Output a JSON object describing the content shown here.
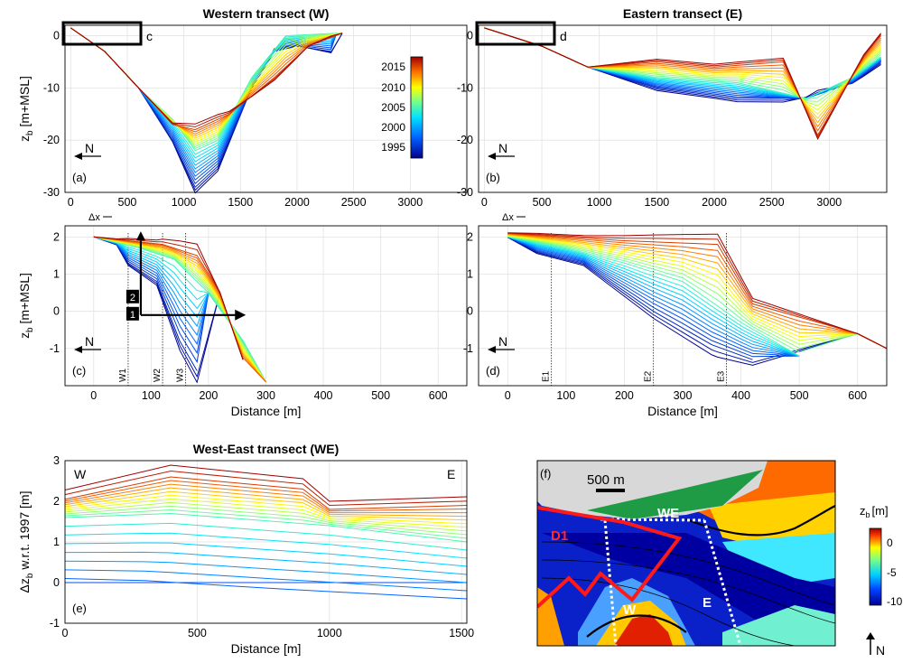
{
  "colormap_years": {
    "ticks": [
      "2015",
      "2010",
      "2005",
      "2000",
      "1995"
    ],
    "range": [
      1993,
      2017
    ]
  },
  "map_colorbar": {
    "title_main": "z",
    "title_sub": "b",
    "title_unit": "[m]",
    "ticks": [
      "0",
      "-5",
      "-10"
    ]
  },
  "chart_data": [
    {
      "id": "a",
      "type": "line",
      "title": "Western transect (W)",
      "panel_label": "(a)",
      "ylabel_main": "z",
      "ylabel_sub": "b",
      "ylabel_rest": " [m+MSL]",
      "xlim": [
        -50,
        3500
      ],
      "ylim": [
        -30,
        2
      ],
      "xticks": [
        0,
        500,
        1000,
        1500,
        2000,
        2500,
        3000
      ],
      "yticks": [
        0,
        -10,
        -20,
        -30
      ],
      "inset_label": "c",
      "direction": "N",
      "series_by_year": {
        "1995": [
          [
            0,
            1.5
          ],
          [
            300,
            -3
          ],
          [
            600,
            -10
          ],
          [
            900,
            -20
          ],
          [
            1100,
            -29
          ],
          [
            1300,
            -25
          ],
          [
            1600,
            -10
          ],
          [
            1800,
            -3
          ],
          [
            2000,
            -2
          ],
          [
            2300,
            -3
          ]
        ],
        "2005": [
          [
            0,
            1.5
          ],
          [
            300,
            -3
          ],
          [
            600,
            -10
          ],
          [
            900,
            -16
          ],
          [
            1100,
            -22
          ],
          [
            1300,
            -20
          ],
          [
            1600,
            -8
          ],
          [
            1900,
            0
          ],
          [
            2350,
            0.5
          ]
        ],
        "2015": [
          [
            0,
            1.5
          ],
          [
            300,
            -3
          ],
          [
            600,
            -10
          ],
          [
            900,
            -17
          ],
          [
            1100,
            -18
          ],
          [
            1400,
            -15
          ],
          [
            1800,
            -8
          ],
          [
            2100,
            -2
          ],
          [
            2400,
            0.5
          ]
        ]
      }
    },
    {
      "id": "b",
      "type": "line",
      "title": "Eastern transect (E)",
      "panel_label": "(b)",
      "xlim": [
        -50,
        3500
      ],
      "ylim": [
        -30,
        2
      ],
      "xticks": [
        0,
        500,
        1000,
        1500,
        2000,
        2500,
        3000
      ],
      "yticks": [
        0,
        -10,
        -20,
        -30
      ],
      "inset_label": "d",
      "direction": "N",
      "series_by_year": {
        "1995": [
          [
            0,
            1.5
          ],
          [
            500,
            -2
          ],
          [
            900,
            -6
          ],
          [
            1500,
            -10
          ],
          [
            2200,
            -12
          ],
          [
            2800,
            -12
          ],
          [
            3200,
            -9
          ],
          [
            3450,
            -5
          ]
        ],
        "2005": [
          [
            0,
            1.5
          ],
          [
            500,
            -2
          ],
          [
            900,
            -6
          ],
          [
            1500,
            -8
          ],
          [
            2200,
            -9
          ],
          [
            2800,
            -12
          ],
          [
            3200,
            -8
          ],
          [
            3450,
            -4
          ]
        ],
        "2015": [
          [
            0,
            1.5
          ],
          [
            500,
            -2
          ],
          [
            900,
            -6
          ],
          [
            1500,
            -5
          ],
          [
            2000,
            -6
          ],
          [
            2600,
            -5
          ],
          [
            2900,
            -19
          ],
          [
            3300,
            -4
          ],
          [
            3450,
            0
          ]
        ]
      }
    },
    {
      "id": "c",
      "type": "line",
      "panel_label": "(c)",
      "ylabel_main": "z",
      "ylabel_sub": "b",
      "ylabel_rest": " [m+MSL]",
      "xlabel": "Distance [m]",
      "xlim": [
        -50,
        650
      ],
      "ylim": [
        -2,
        2.3
      ],
      "xticks": [
        0,
        100,
        200,
        300,
        400,
        500,
        600
      ],
      "yticks": [
        2,
        1,
        0,
        -1
      ],
      "markers": [
        {
          "x": 60,
          "label": "W1"
        },
        {
          "x": 120,
          "label": "W2"
        },
        {
          "x": 160,
          "label": "W3"
        }
      ],
      "arrows": [
        {
          "label": "1",
          "direction": "cross-shore"
        },
        {
          "label": "2",
          "direction": "vertical"
        }
      ],
      "dx_label": "Δx",
      "direction": "N",
      "series_by_year": {
        "1995": [
          [
            0,
            2
          ],
          [
            40,
            1.8
          ],
          [
            60,
            1.3
          ],
          [
            110,
            0.8
          ],
          [
            150,
            -0.8
          ],
          [
            180,
            -1.6
          ]
        ],
        "2005": [
          [
            0,
            2
          ],
          [
            80,
            1.7
          ],
          [
            140,
            1.4
          ],
          [
            200,
            0.5
          ],
          [
            260,
            -0.8
          ],
          [
            300,
            -1.9
          ]
        ],
        "2015": [
          [
            0,
            2
          ],
          [
            120,
            1.8
          ],
          [
            180,
            1.5
          ],
          [
            220,
            0.5
          ],
          [
            260,
            -1.3
          ]
        ]
      }
    },
    {
      "id": "d",
      "type": "line",
      "panel_label": "(d)",
      "xlabel": "Distance [m]",
      "xlim": [
        -50,
        650
      ],
      "ylim": [
        -2,
        2.3
      ],
      "xticks": [
        0,
        100,
        200,
        300,
        400,
        500,
        600
      ],
      "yticks": [
        2,
        1,
        0,
        -1
      ],
      "markers": [
        {
          "x": 75,
          "label": "E1"
        },
        {
          "x": 250,
          "label": "E2"
        },
        {
          "x": 375,
          "label": "E3"
        }
      ],
      "dx_label": "Δx",
      "direction": "N",
      "series_by_year": {
        "1995": [
          [
            0,
            2
          ],
          [
            50,
            1.6
          ],
          [
            130,
            1.3
          ],
          [
            250,
            0
          ],
          [
            350,
            -0.9
          ],
          [
            420,
            -1.3
          ]
        ],
        "2005": [
          [
            0,
            2
          ],
          [
            100,
            1.7
          ],
          [
            200,
            1.3
          ],
          [
            300,
            0.8
          ],
          [
            400,
            -0.3
          ],
          [
            500,
            -1.2
          ]
        ],
        "2015": [
          [
            0,
            2.1
          ],
          [
            200,
            1.9
          ],
          [
            360,
            1.8
          ],
          [
            420,
            0.2
          ],
          [
            600,
            -0.6
          ],
          [
            650,
            -1
          ]
        ]
      }
    },
    {
      "id": "e",
      "type": "line",
      "title": "West-East transect (WE)",
      "panel_label": "(e)",
      "ylabel_pre": "Δz",
      "ylabel_sub": "b",
      "ylabel_rest": " w.r.t. 1997 [m]",
      "xlabel": "Distance [m]",
      "xlim": [
        0,
        1520
      ],
      "ylim": [
        -1,
        3
      ],
      "xticks": [
        0,
        500,
        1000,
        1500
      ],
      "yticks": [
        3,
        2,
        1,
        0,
        -1
      ],
      "end_labels": {
        "left": "W",
        "right": "E"
      },
      "series_by_year": {
        "1997": [
          [
            0,
            0
          ],
          [
            1520,
            0
          ]
        ],
        "1998": [
          [
            0,
            0.1
          ],
          [
            300,
            0.05
          ],
          [
            800,
            -0.15
          ],
          [
            1520,
            -0.4
          ]
        ],
        "2005": [
          [
            0,
            1.6
          ],
          [
            400,
            1.7
          ],
          [
            1000,
            1.4
          ],
          [
            1520,
            1
          ]
        ],
        "2015": [
          [
            0,
            2.05
          ],
          [
            400,
            2.6
          ],
          [
            900,
            2.3
          ],
          [
            1000,
            1.8
          ],
          [
            1520,
            1.9
          ]
        ]
      }
    }
  ],
  "map": {
    "panel_label": "(f)",
    "scale_label": "500 m",
    "area_label": "D1",
    "transects": [
      "WE",
      "W",
      "E"
    ],
    "north": "N"
  }
}
